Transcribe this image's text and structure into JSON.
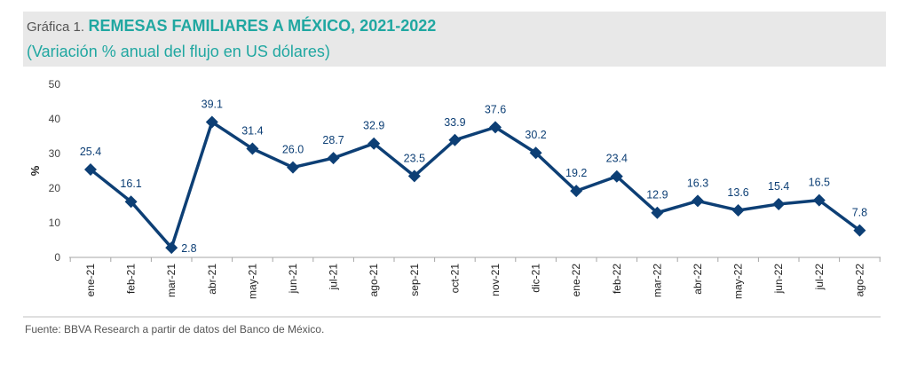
{
  "header": {
    "prefix": "Gráfica 1.",
    "title": "REMESAS FAMILIARES A MÉXICO, 2021-2022",
    "subtitle": "(Variación % anual del flujo en US dólares)"
  },
  "source": "Fuente: BBVA Research a partir de datos del Banco de México.",
  "colors": {
    "series": "#0d3f75",
    "title": "#20a7a1",
    "header_bg": "#e8e8e8"
  },
  "chart_data": {
    "type": "line",
    "title": "REMESAS FAMILIARES A MÉXICO, 2021-2022",
    "subtitle": "(Variación % anual del flujo en US dólares)",
    "xlabel": "",
    "ylabel": "%",
    "ylim": [
      0,
      50
    ],
    "yticks": [
      0,
      10,
      20,
      30,
      40,
      50
    ],
    "grid": false,
    "marker": "diamond",
    "categories": [
      "ene-21",
      "feb-21",
      "mar-21",
      "abr-21",
      "may-21",
      "jun-21",
      "jul-21",
      "ago-21",
      "sep-21",
      "oct-21",
      "nov-21",
      "dic-21",
      "ene-22",
      "feb-22",
      "mar-22",
      "abr-22",
      "may-22",
      "jun-22",
      "jul-22",
      "ago-22"
    ],
    "values": [
      25.4,
      16.1,
      2.8,
      39.1,
      31.4,
      26.0,
      28.7,
      32.9,
      23.5,
      33.9,
      37.6,
      30.2,
      19.2,
      23.4,
      12.9,
      16.3,
      13.6,
      15.4,
      16.5,
      7.8
    ],
    "data_labels": [
      "25.4",
      "16.1",
      "2.8",
      "39.1",
      "31.4",
      "26.0",
      "28.7",
      "32.9",
      "23.5",
      "33.9",
      "37.6",
      "30.2",
      "19.2",
      "23.4",
      "12.9",
      "16.3",
      "13.6",
      "15.4",
      "16.5",
      "7.8"
    ]
  }
}
